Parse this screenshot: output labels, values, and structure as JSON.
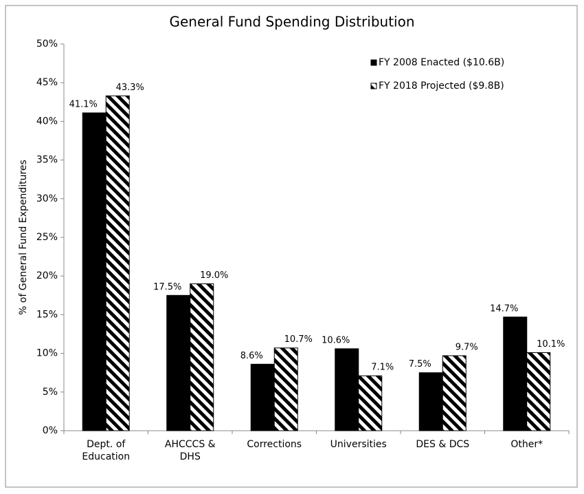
{
  "chart_data": {
    "type": "bar",
    "title": "General Fund Spending Distribution",
    "y_label": "% of General Fund Expenditures",
    "categories": [
      [
        "Dept. of",
        "Education"
      ],
      [
        "AHCCCS &",
        "DHS"
      ],
      [
        "Corrections"
      ],
      [
        "Universities"
      ],
      [
        "DES & DCS"
      ],
      [
        "Other*"
      ]
    ],
    "series": [
      {
        "name": "FY 2008 Enacted ($10.6B)",
        "color": "#000000",
        "pattern": "solid",
        "values": [
          41.1,
          17.5,
          8.6,
          10.6,
          7.5,
          14.7
        ],
        "value_labels": [
          "41.1%",
          "17.5%",
          "8.6%",
          "10.6%",
          "7.5%",
          "14.7%"
        ]
      },
      {
        "name": "FY 2018 Projected ($9.8B)",
        "color": "#000000",
        "pattern": "hatch",
        "values": [
          43.3,
          19.0,
          10.7,
          7.1,
          9.7,
          10.1
        ],
        "value_labels": [
          "43.3%",
          "19.0%",
          "10.7%",
          "7.1%",
          "9.7%",
          "10.1%"
        ]
      }
    ],
    "ylim": [
      0,
      50
    ],
    "yticks": [
      {
        "value": 0,
        "label": "0%"
      },
      {
        "value": 5,
        "label": "5%"
      },
      {
        "value": 10,
        "label": "10%"
      },
      {
        "value": 15,
        "label": "15%"
      },
      {
        "value": 20,
        "label": "20%"
      },
      {
        "value": 25,
        "label": "25%"
      },
      {
        "value": 30,
        "label": "30%"
      },
      {
        "value": 35,
        "label": "35%"
      },
      {
        "value": 40,
        "label": "40%"
      },
      {
        "value": 45,
        "label": "45%"
      },
      {
        "value": 50,
        "label": "50%"
      }
    ],
    "grid": false,
    "legend": "top-right"
  }
}
